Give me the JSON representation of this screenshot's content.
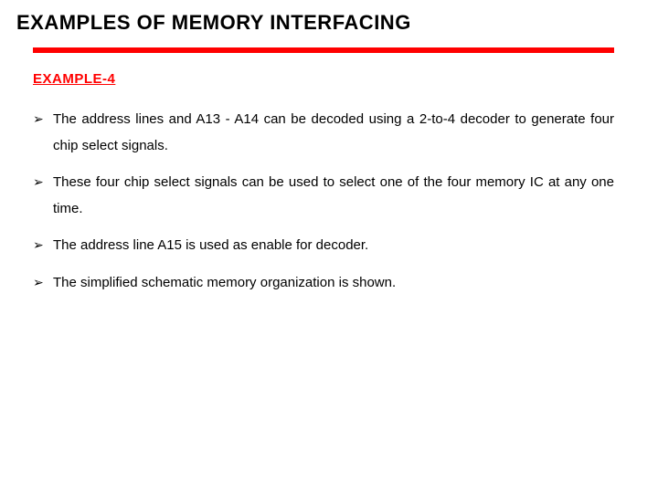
{
  "title": "EXAMPLES OF MEMORY INTERFACING",
  "subheading": "EXAMPLE-4",
  "bullet_marker": "➢",
  "rule_color": "#ff0000",
  "subheading_color": "#ff0000",
  "text_color": "#000000",
  "background_color": "#ffffff",
  "title_fontsize": 22,
  "body_fontsize": 15,
  "bullets": [
    "The address lines and A13 - A14 can be decoded using a 2-to-4 decoder to generate four chip select signals.",
    "These four chip select signals can be used to select one of the four memory IC at any one time.",
    "The address line A15 is used as enable for decoder.",
    "The simplified schematic memory organization is shown."
  ]
}
